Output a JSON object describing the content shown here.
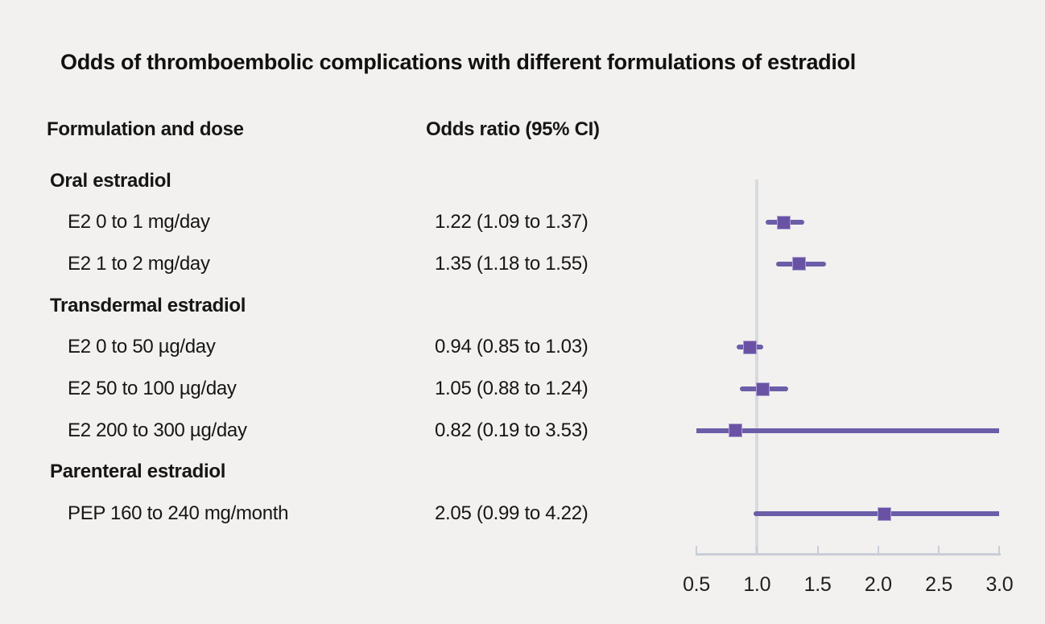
{
  "title": "Odds of thromboembolic complications with different formulations of estradiol",
  "columns": {
    "formulation": "Formulation and dose",
    "odds_ratio": "Odds ratio (95% CI)"
  },
  "colors": {
    "background": "#f2f1ef",
    "text": "#161616",
    "ci_bar": "#6c5da9",
    "marker": "#6952a4",
    "marker_border": "#aca0d3",
    "axis": "#c9ced7",
    "reference_line": "#d6dadf"
  },
  "chart_data": {
    "type": "forest",
    "title": "Odds of thromboembolic complications with different formulations of estradiol",
    "xlabel": "",
    "ylabel": "",
    "xlim": [
      0.5,
      3.0
    ],
    "reference_line_x": 1.0,
    "x_ticks": [
      0.5,
      1.0,
      1.5,
      2.0,
      2.5,
      3.0
    ],
    "x_tick_labels": [
      "0.5",
      "1.0",
      "1.5",
      "2.0",
      "2.5",
      "3.0"
    ],
    "grid": false,
    "legend": false,
    "rows": [
      {
        "kind": "group",
        "label": "Oral estradiol"
      },
      {
        "kind": "item",
        "label": "E2 0 to 1 mg/day",
        "display": "1.22 (1.09 to 1.37)",
        "or": 1.22,
        "ci_low": 1.09,
        "ci_high": 1.37
      },
      {
        "kind": "item",
        "label": "E2 1 to 2 mg/day",
        "display": "1.35 (1.18 to 1.55)",
        "or": 1.35,
        "ci_low": 1.18,
        "ci_high": 1.55
      },
      {
        "kind": "group",
        "label": "Transdermal estradiol"
      },
      {
        "kind": "item",
        "label": "E2 0 to 50 µg/day",
        "display": "0.94 (0.85 to 1.03)",
        "or": 0.94,
        "ci_low": 0.85,
        "ci_high": 1.03
      },
      {
        "kind": "item",
        "label": "E2 50 to 100 µg/day",
        "display": "1.05 (0.88 to 1.24)",
        "or": 1.05,
        "ci_low": 0.88,
        "ci_high": 1.24
      },
      {
        "kind": "item",
        "label": "E2 200 to 300 µg/day",
        "display": "0.82 (0.19 to 3.53)",
        "or": 0.82,
        "ci_low": 0.19,
        "ci_high": 3.53
      },
      {
        "kind": "group",
        "label": "Parenteral estradiol"
      },
      {
        "kind": "item",
        "label": "PEP 160 to 240 mg/month",
        "display": "2.05 (0.99 to 4.22)",
        "or": 2.05,
        "ci_low": 0.99,
        "ci_high": 4.22
      }
    ]
  }
}
